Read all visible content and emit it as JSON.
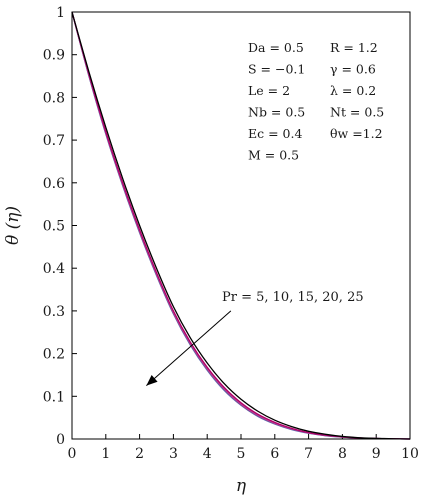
{
  "chart_data": {
    "type": "line",
    "xlabel": "η",
    "ylabel": "θ (η)",
    "xlim": [
      0,
      10
    ],
    "ylim": [
      0,
      1
    ],
    "xticks": [
      "0",
      "1",
      "2",
      "3",
      "4",
      "5",
      "6",
      "7",
      "8",
      "9",
      "10"
    ],
    "yticks": [
      "0",
      "0.1",
      "0.2",
      "0.3",
      "0.4",
      "0.5",
      "0.6",
      "0.7",
      "0.8",
      "0.9",
      "1"
    ],
    "grid": false,
    "x": [
      0,
      0.5,
      1,
      1.5,
      2,
      2.5,
      3,
      3.5,
      4,
      4.5,
      5,
      5.5,
      6,
      6.5,
      7,
      7.5,
      8,
      8.5,
      9,
      9.5,
      10
    ],
    "series": [
      {
        "color": "#000000",
        "values": [
          1.0,
          0.86,
          0.73,
          0.61,
          0.5,
          0.4,
          0.31,
          0.237,
          0.178,
          0.13,
          0.093,
          0.065,
          0.044,
          0.029,
          0.018,
          0.011,
          0.006,
          0.003,
          0.0015,
          0.0005,
          0.0
        ]
      },
      {
        "color": "#b0006a",
        "values": [
          1.0,
          0.855,
          0.72,
          0.6,
          0.49,
          0.39,
          0.3,
          0.227,
          0.168,
          0.121,
          0.085,
          0.058,
          0.039,
          0.025,
          0.015,
          0.009,
          0.005,
          0.0025,
          0.001,
          0.0004,
          0.0
        ]
      },
      {
        "color": "#c03c8c",
        "values": [
          1.0,
          0.853,
          0.718,
          0.597,
          0.487,
          0.387,
          0.297,
          0.224,
          0.165,
          0.118,
          0.082,
          0.056,
          0.037,
          0.024,
          0.0145,
          0.0085,
          0.0048,
          0.0024,
          0.001,
          0.0004,
          0.0
        ]
      },
      {
        "color": "#7a4a9a",
        "values": [
          1.0,
          0.851,
          0.716,
          0.595,
          0.485,
          0.385,
          0.295,
          0.222,
          0.163,
          0.116,
          0.08,
          0.054,
          0.036,
          0.023,
          0.014,
          0.008,
          0.0046,
          0.0023,
          0.001,
          0.0004,
          0.0
        ]
      },
      {
        "color": "#5a6fb0",
        "values": [
          1.0,
          0.85,
          0.714,
          0.593,
          0.483,
          0.383,
          0.293,
          0.22,
          0.161,
          0.114,
          0.079,
          0.053,
          0.035,
          0.022,
          0.0135,
          0.0078,
          0.0044,
          0.0022,
          0.001,
          0.0004,
          0.0
        ]
      }
    ],
    "params": [
      [
        "Da = 0.5",
        "R = 1.2"
      ],
      [
        "S = −0.1",
        "γ = 0.6"
      ],
      [
        "Le = 2",
        "λ = 0.2"
      ],
      [
        "Nb = 0.5",
        "Nt = 0.5"
      ],
      [
        "Ec = 0.4",
        "θw =1.2"
      ],
      [
        "M = 0.5",
        ""
      ]
    ],
    "annotation": {
      "text": "Pr = 5, 10, 15, 20, 25",
      "arrow_from": [
        4.7,
        0.3
      ],
      "arrow_to": [
        2.2,
        0.125
      ]
    }
  }
}
